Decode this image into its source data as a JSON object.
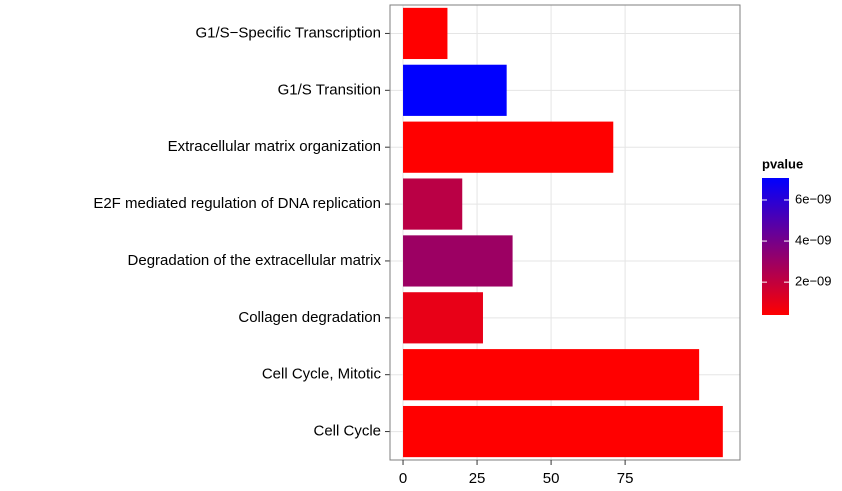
{
  "chart_data": {
    "type": "barh",
    "categories": [
      "G1/S−Specific Transcription",
      "G1/S Transition",
      "Extracellular matrix organization",
      "E2F mediated regulation of DNA replication",
      "Degradation of the extracellular matrix",
      "Collagen degradation",
      "Cell Cycle, Mitotic",
      "Cell Cycle"
    ],
    "values": [
      15,
      35,
      71,
      20,
      37,
      27,
      100,
      108
    ],
    "pvalues": [
      4e-10,
      7.07e-09,
      4e-10,
      2.2e-09,
      3e-09,
      1e-09,
      4e-10,
      4e-10
    ],
    "xlim": [
      -4.4,
      113.8
    ],
    "xticks": [
      0,
      25,
      50,
      75
    ],
    "grid": true,
    "colorbar": {
      "title": "pvalue",
      "lim": [
        4e-10,
        7.07e-09
      ],
      "low_color": "#ff0000",
      "high_color": "#0000ff",
      "ticks": [
        {
          "value": 2e-09,
          "label": "2e−09"
        },
        {
          "value": 4e-09,
          "label": "4e−09"
        },
        {
          "value": 6e-09,
          "label": "6e−09"
        }
      ]
    }
  }
}
